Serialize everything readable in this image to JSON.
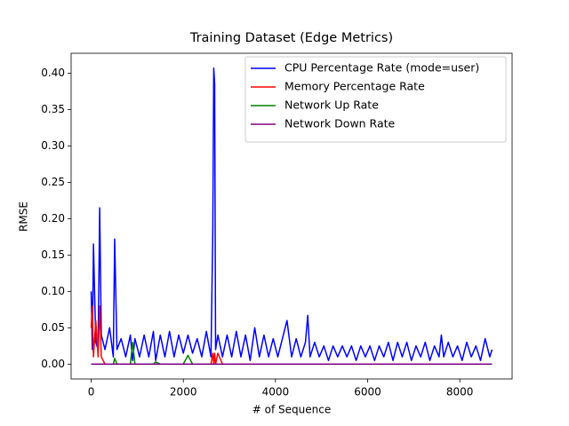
{
  "chart_data": {
    "type": "line",
    "title": "Training Dataset (Edge Metrics)",
    "xlabel": "# of Sequence",
    "ylabel": "RMSE",
    "x": [
      0,
      25,
      50,
      100,
      150,
      185,
      220,
      300,
      400,
      480,
      510,
      560,
      650,
      750,
      850,
      900,
      950,
      1050,
      1150,
      1250,
      1350,
      1400,
      1500,
      1600,
      1700,
      1800,
      1900,
      2000,
      2100,
      2200,
      2300,
      2400,
      2500,
      2600,
      2640,
      2660,
      2680,
      2700,
      2750,
      2850,
      2950,
      3050,
      3150,
      3250,
      3350,
      3450,
      3550,
      3650,
      3750,
      3850,
      3950,
      4050,
      4150,
      4250,
      4350,
      4450,
      4550,
      4650,
      4700,
      4750,
      4850,
      4950,
      5050,
      5150,
      5250,
      5350,
      5450,
      5550,
      5650,
      5750,
      5850,
      5950,
      6050,
      6150,
      6250,
      6350,
      6450,
      6550,
      6650,
      6750,
      6850,
      6950,
      7050,
      7150,
      7250,
      7350,
      7450,
      7550,
      7600,
      7650,
      7750,
      7850,
      7950,
      8050,
      8150,
      8250,
      8350,
      8450,
      8550,
      8650,
      8700
    ],
    "series": [
      {
        "name": "CPU Percentage Rate (mode=user)",
        "color": "#0000ff",
        "values": [
          0.1,
          0.02,
          0.165,
          0.03,
          0.02,
          0.215,
          0.04,
          0.02,
          0.05,
          0.01,
          0.172,
          0.02,
          0.035,
          0.01,
          0.04,
          0.005,
          0.035,
          0.01,
          0.04,
          0.01,
          0.045,
          0.005,
          0.04,
          0.01,
          0.045,
          0.01,
          0.04,
          0.015,
          0.04,
          0.015,
          0.035,
          0.01,
          0.045,
          0.01,
          0.185,
          0.407,
          0.385,
          0.02,
          0.04,
          0.01,
          0.04,
          0.01,
          0.045,
          0.01,
          0.04,
          0.005,
          0.05,
          0.01,
          0.04,
          0.01,
          0.035,
          0.01,
          0.035,
          0.06,
          0.01,
          0.035,
          0.01,
          0.03,
          0.067,
          0.01,
          0.03,
          0.01,
          0.025,
          0.005,
          0.025,
          0.01,
          0.025,
          0.01,
          0.025,
          0.005,
          0.025,
          0.01,
          0.025,
          0.005,
          0.025,
          0.01,
          0.03,
          0.005,
          0.03,
          0.01,
          0.03,
          0.005,
          0.025,
          0.01,
          0.03,
          0.005,
          0.025,
          0.01,
          0.04,
          0.01,
          0.03,
          0.01,
          0.025,
          0.005,
          0.03,
          0.01,
          0.025,
          0.005,
          0.035,
          0.01,
          0.02
        ]
      },
      {
        "name": "Memory Percentage Rate",
        "color": "#ff0000",
        "values": [
          0.05,
          0.08,
          0.01,
          0.06,
          0.01,
          0.08,
          0.01,
          0,
          0,
          0,
          0,
          0,
          0,
          0,
          0,
          0,
          0,
          0,
          0,
          0,
          0,
          0,
          0,
          0,
          0,
          0,
          0,
          0,
          0,
          0,
          0,
          0,
          0,
          0,
          0.015,
          0,
          0.015,
          0,
          0.015,
          0,
          0,
          0,
          0,
          0,
          0,
          0,
          0,
          0,
          0,
          0,
          0,
          0,
          0,
          0,
          0,
          0,
          0,
          0,
          0,
          0,
          0,
          0,
          0,
          0,
          0,
          0,
          0,
          0,
          0,
          0,
          0,
          0,
          0,
          0,
          0,
          0,
          0,
          0,
          0,
          0,
          0,
          0,
          0,
          0,
          0,
          0,
          0,
          0,
          0,
          0,
          0,
          0,
          0,
          0,
          0,
          0,
          0,
          0,
          0,
          0,
          0
        ]
      },
      {
        "name": "Network Up Rate",
        "color": "#008000",
        "values": [
          0,
          0,
          0,
          0,
          0,
          0,
          0,
          0,
          0,
          0,
          0.008,
          0,
          0,
          0,
          0,
          0.03,
          0,
          0,
          0,
          0,
          0,
          0.003,
          0,
          0,
          0,
          0,
          0,
          0,
          0.012,
          0,
          0,
          0,
          0,
          0,
          0,
          0,
          0,
          0,
          0,
          0,
          0,
          0,
          0,
          0,
          0,
          0,
          0,
          0,
          0,
          0,
          0,
          0,
          0,
          0,
          0,
          0,
          0,
          0,
          0,
          0,
          0,
          0,
          0,
          0,
          0,
          0,
          0,
          0,
          0,
          0,
          0,
          0,
          0,
          0,
          0,
          0,
          0,
          0,
          0,
          0,
          0,
          0,
          0,
          0,
          0,
          0,
          0,
          0,
          0,
          0,
          0,
          0,
          0,
          0,
          0,
          0,
          0,
          0,
          0,
          0,
          0
        ]
      },
      {
        "name": "Network Down Rate",
        "color": "#800080",
        "values": [
          0,
          0,
          0,
          0,
          0,
          0,
          0,
          0,
          0,
          0,
          0,
          0,
          0,
          0,
          0,
          0,
          0,
          0,
          0,
          0,
          0,
          0,
          0,
          0,
          0,
          0,
          0,
          0,
          0,
          0,
          0,
          0,
          0,
          0,
          0,
          0,
          0,
          0,
          0,
          0,
          0,
          0,
          0,
          0,
          0,
          0,
          0,
          0,
          0,
          0,
          0,
          0,
          0,
          0,
          0,
          0,
          0,
          0,
          0,
          0,
          0,
          0,
          0,
          0,
          0,
          0,
          0,
          0,
          0,
          0,
          0,
          0,
          0,
          0,
          0,
          0,
          0,
          0,
          0,
          0,
          0,
          0,
          0,
          0,
          0,
          0,
          0,
          0,
          0,
          0,
          0,
          0,
          0,
          0,
          0,
          0,
          0,
          0,
          0,
          0,
          0
        ]
      }
    ],
    "xlim": [
      -435,
      9135
    ],
    "ylim": [
      -0.0204,
      0.4274
    ],
    "xticks": [
      0,
      2000,
      4000,
      6000,
      8000
    ],
    "yticks": [
      {
        "value": 0,
        "label": "0.00"
      },
      0.05,
      {
        "value": 0.1,
        "label": "0.10"
      },
      0.15,
      {
        "value": 0.2,
        "label": "0.20"
      },
      0.25,
      {
        "value": 0.3,
        "label": "0.30"
      },
      0.35,
      {
        "value": 0.4,
        "label": "0.40"
      }
    ],
    "grid": false,
    "legend": "upper right"
  }
}
